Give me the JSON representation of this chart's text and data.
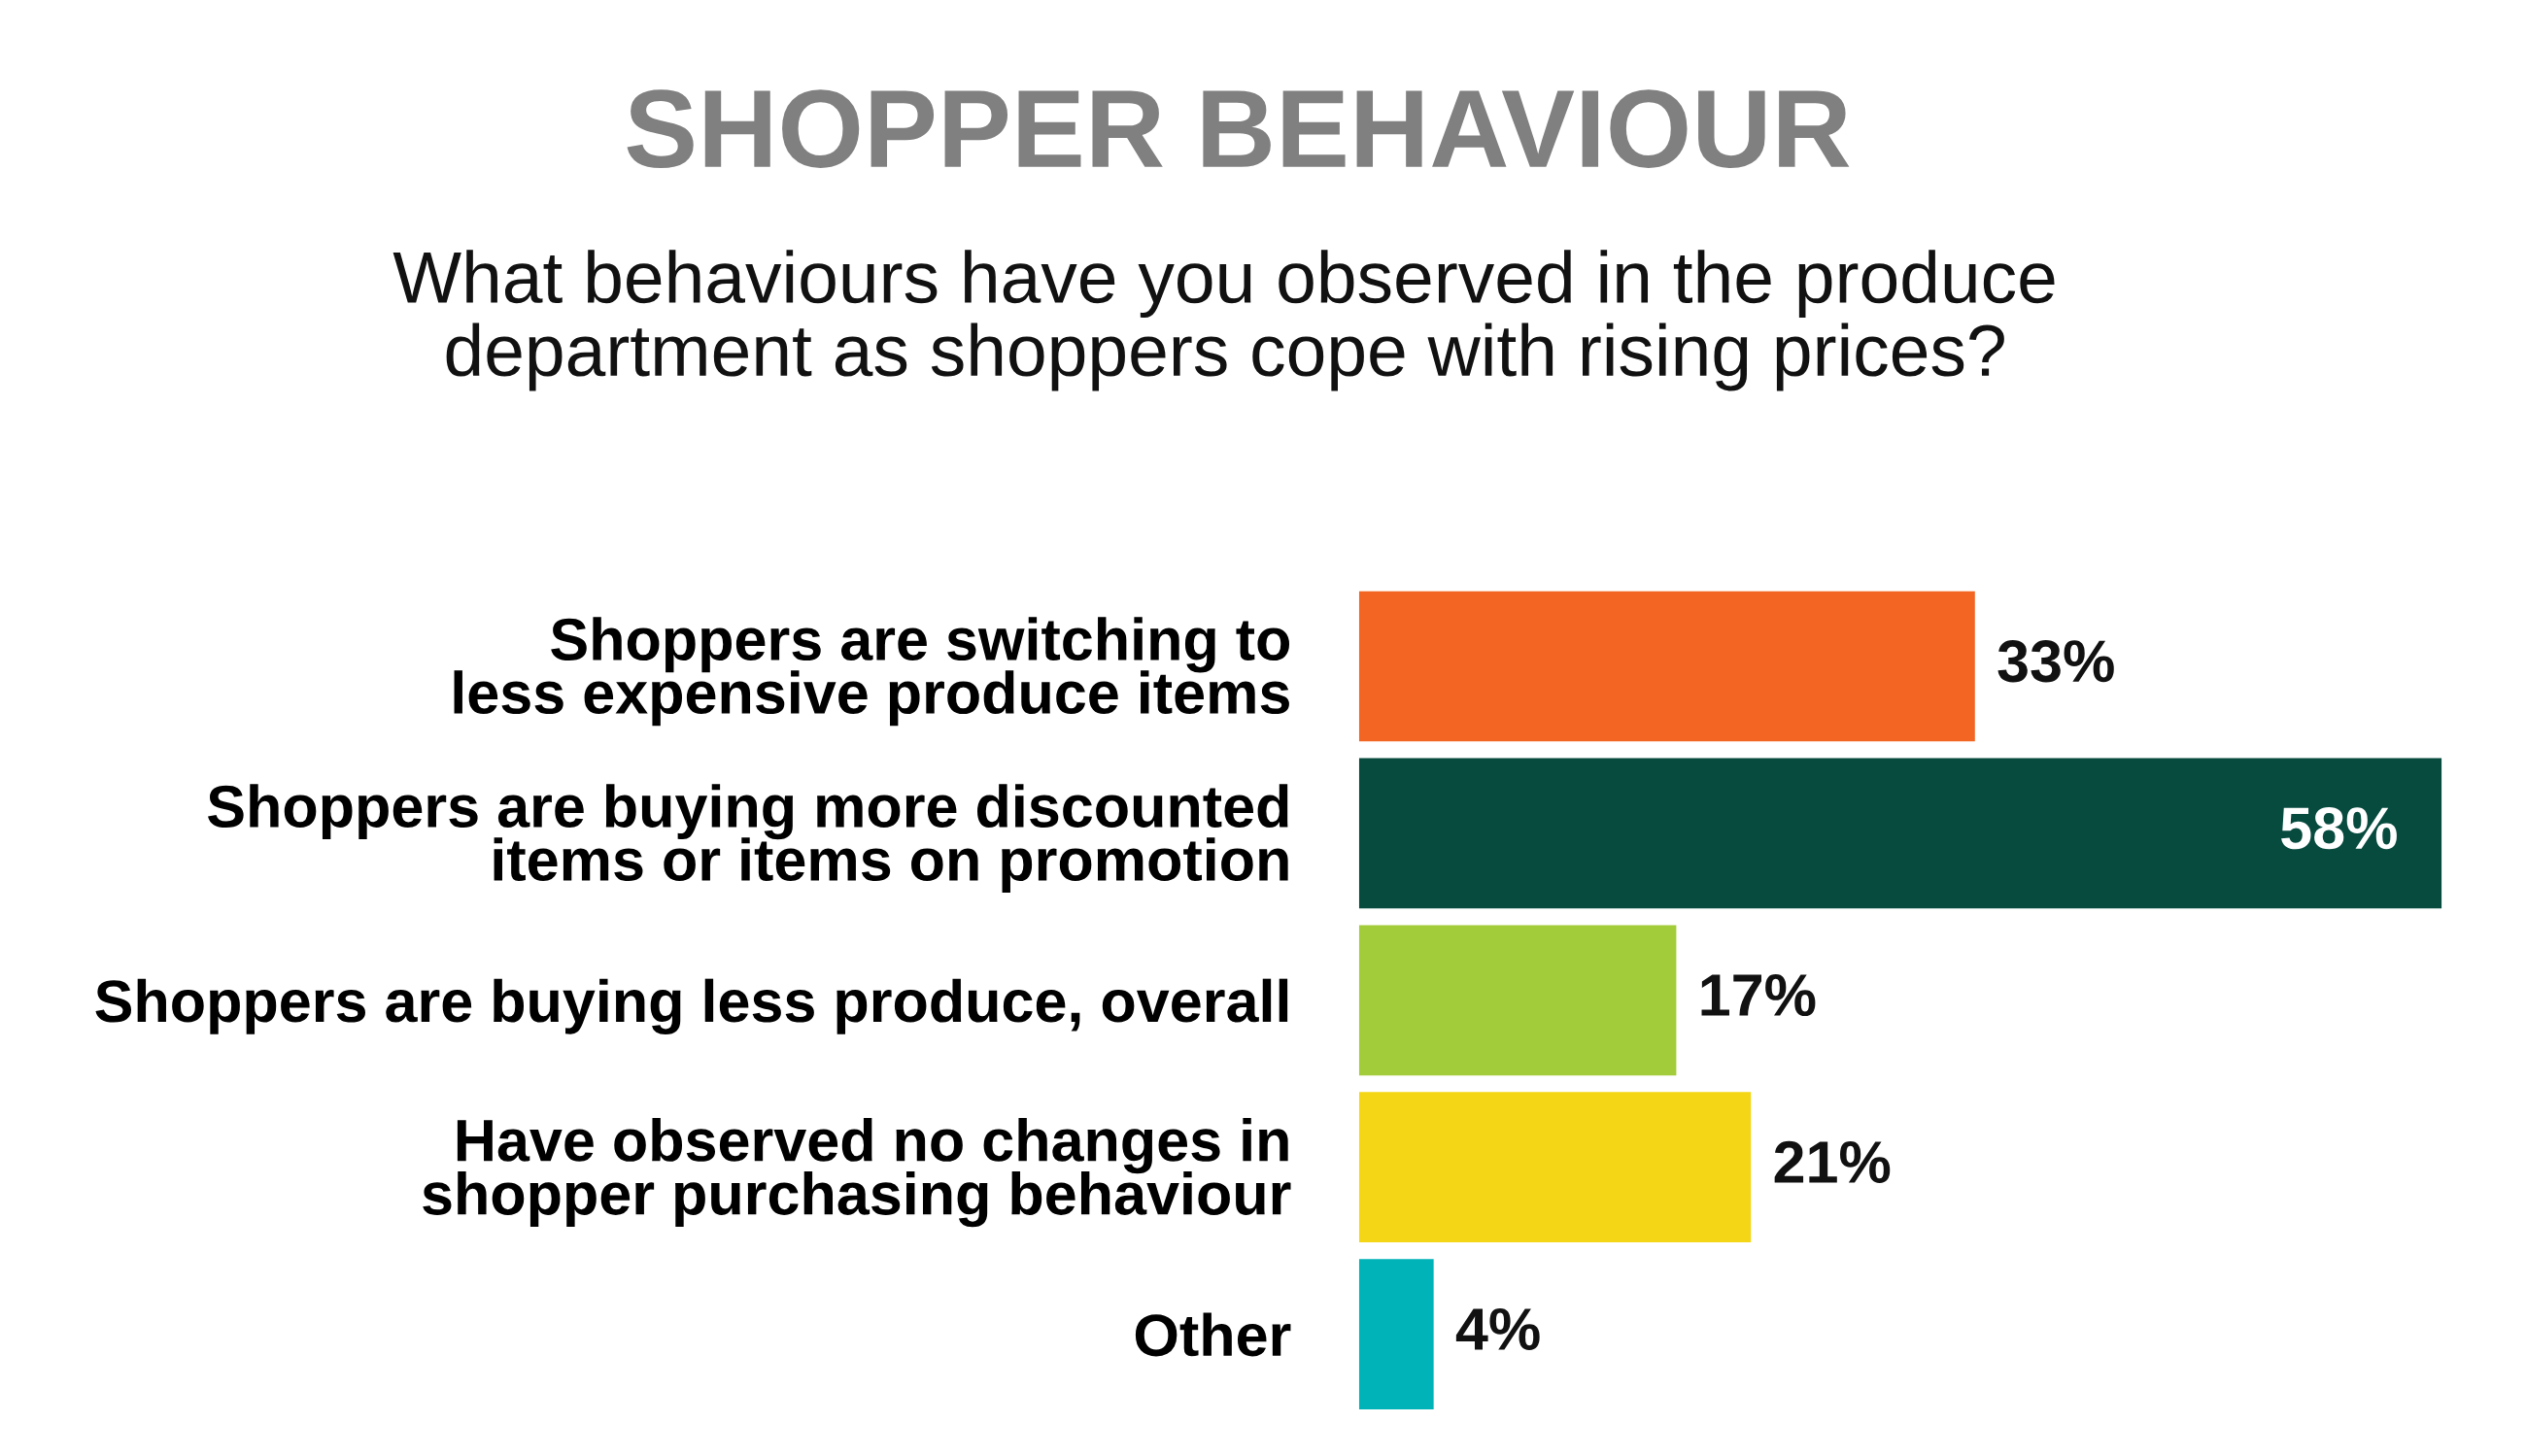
{
  "chart_data": {
    "type": "bar",
    "orientation": "horizontal",
    "title": "SHOPPER BEHAVIOUR",
    "subtitle": "What behaviours have you observed in the produce\ndepartment as shoppers cope with rising prices?",
    "categories": [
      "Shoppers are switching to\nless expensive produce items",
      "Shoppers are buying more discounted\nitems or items on promotion",
      "Shoppers are buying less produce, overall",
      "Have observed no changes in\nshopper purchasing behaviour",
      "Other"
    ],
    "values": [
      33,
      58,
      17,
      21,
      4
    ],
    "colors": [
      "#f26522",
      "#074b3f",
      "#a3cc3a",
      "#f5d616",
      "#00b3b8"
    ],
    "value_labels": [
      "33%",
      "58%",
      "17%",
      "21%",
      "4%"
    ],
    "grid": false,
    "legend": false
  }
}
